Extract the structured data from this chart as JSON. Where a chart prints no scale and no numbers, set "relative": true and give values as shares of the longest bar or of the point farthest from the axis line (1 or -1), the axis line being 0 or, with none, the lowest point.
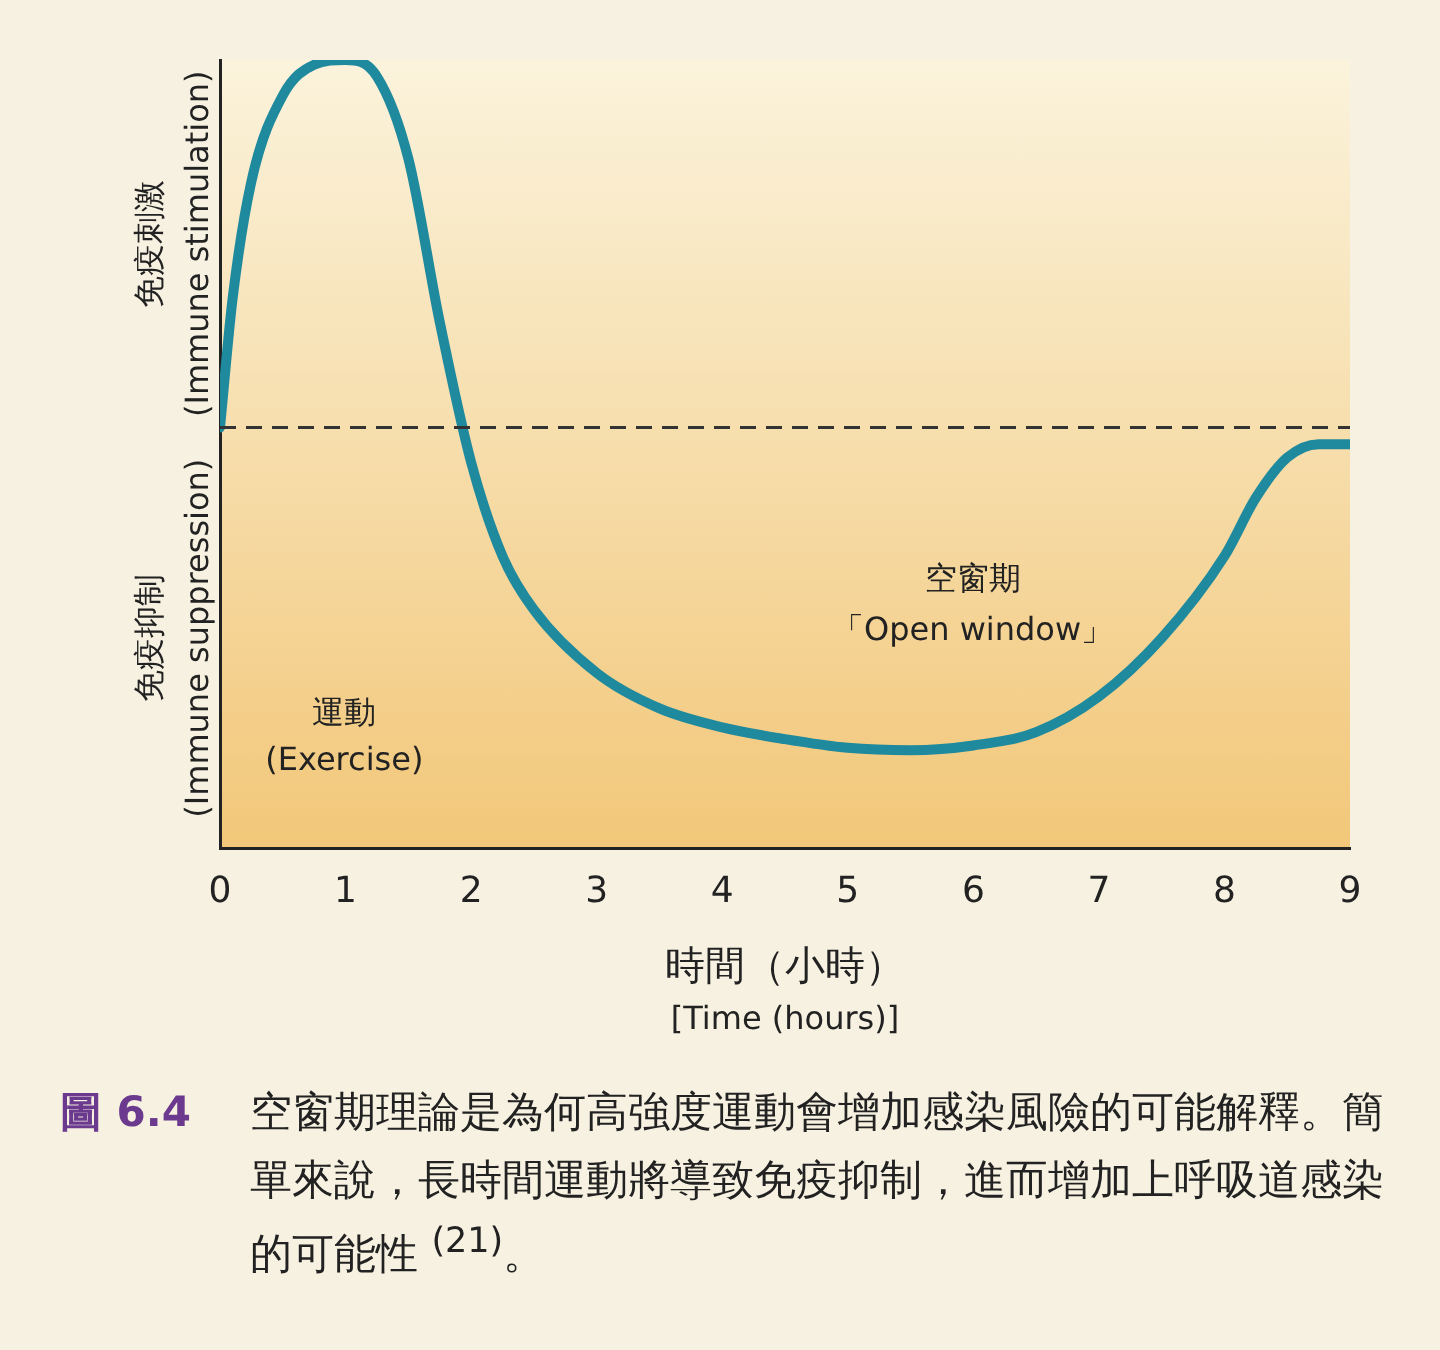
{
  "chart_data": {
    "type": "line",
    "relative": true,
    "xlabel": "時間（小時）\n[Time (hours)]",
    "x": [
      0,
      0.1,
      0.25,
      0.5,
      0.75,
      1,
      1.25,
      1.5,
      1.75,
      2,
      2.25,
      2.5,
      3,
      3.5,
      4,
      4.5,
      5,
      5.5,
      6,
      6.5,
      7,
      7.5,
      8,
      8.25,
      8.5,
      8.75,
      9
    ],
    "series": [
      {
        "color": "#1f8a9e",
        "values": [
          0.534,
          0.697,
          0.846,
          0.955,
          0.994,
          1,
          0.979,
          0.875,
          0.668,
          0.49,
          0.371,
          0.303,
          0.223,
          0.178,
          0.154,
          0.139,
          0.128,
          0.125,
          0.131,
          0.148,
          0.193,
          0.267,
          0.371,
          0.445,
          0.496,
          0.513,
          0.513
        ]
      }
    ],
    "xlim": [
      0,
      9
    ],
    "xticks": [
      0,
      1,
      2,
      3,
      4,
      5,
      6,
      7,
      8,
      9
    ],
    "ref_lines": [
      {
        "axis": "y",
        "value": 0.534,
        "color": "#333333",
        "line_style": "dashed"
      }
    ],
    "grid": false,
    "legend": false,
    "marker": "none",
    "line_style": "solid",
    "annotations": [
      "免疫刺激",
      "(Immune stimulation)",
      "免疫抑制",
      "(Immune suppression)",
      "空窗期",
      "「Open window」",
      "運動",
      "(Exercise)",
      "圖 6.4",
      "空窗期理論是為何高強度運動會增加感染風險的可能解釋。簡單來說，長時間運動將導致免疫抑制，進而增加上呼吸道感染的可能性 $^{(21)}$。"
    ]
  }
}
